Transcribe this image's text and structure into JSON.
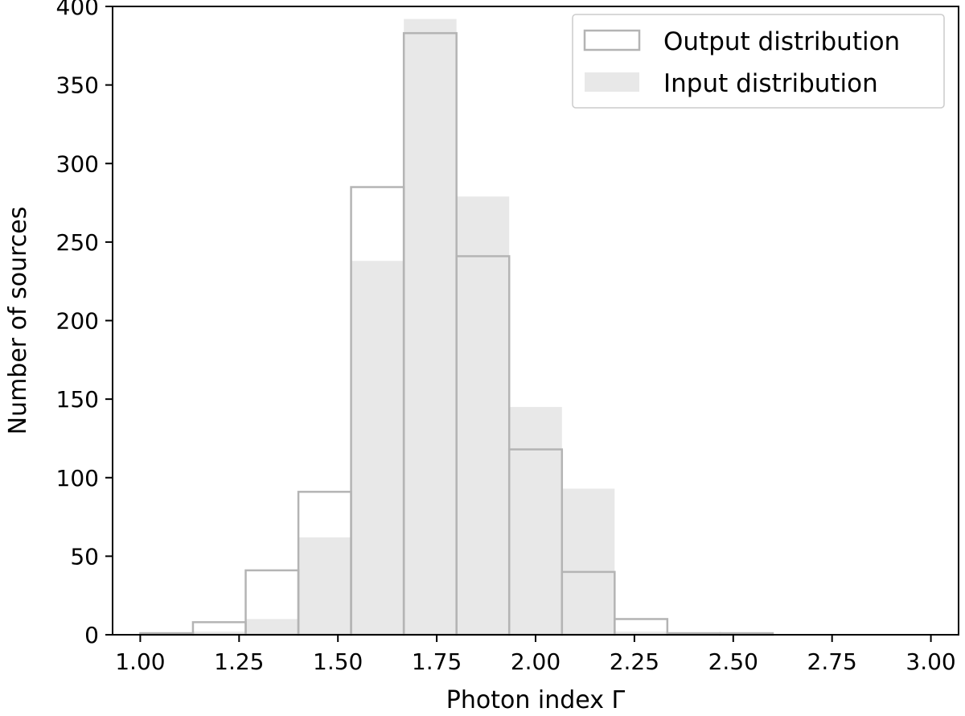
{
  "chart_data": {
    "type": "bar",
    "subtype": "histogram",
    "xlabel": "Photon index Γ",
    "ylabel": "Number of sources",
    "xlim": [
      0.93,
      3.07
    ],
    "ylim": [
      0,
      400
    ],
    "xticks": [
      1.0,
      1.25,
      1.5,
      1.75,
      2.0,
      2.25,
      2.5,
      2.75,
      3.0
    ],
    "xtick_labels": [
      "1.00",
      "1.25",
      "1.50",
      "1.75",
      "2.00",
      "2.25",
      "2.50",
      "2.75",
      "3.00"
    ],
    "yticks": [
      0,
      50,
      100,
      150,
      200,
      250,
      300,
      350,
      400
    ],
    "ytick_labels": [
      "0",
      "50",
      "100",
      "150",
      "200",
      "250",
      "300",
      "350",
      "400"
    ],
    "bin_edges": [
      1.0,
      1.1333,
      1.2667,
      1.4,
      1.5333,
      1.6667,
      1.8,
      1.9333,
      2.0667,
      2.2,
      2.3333,
      2.4667,
      2.6,
      2.7333,
      2.8667,
      3.0
    ],
    "grid": false,
    "legend_position": "top-right",
    "series": [
      {
        "name": "Output distribution",
        "style": "step-outline",
        "color": "#b4b4b4",
        "values": [
          1,
          8,
          41,
          91,
          285,
          383,
          241,
          118,
          40,
          10,
          1,
          1,
          0,
          0,
          0
        ]
      },
      {
        "name": "Input distribution",
        "style": "filled",
        "color": "#e8e8e8",
        "values": [
          0,
          2,
          10,
          62,
          238,
          392,
          279,
          145,
          93,
          2,
          1,
          1,
          0,
          0,
          0
        ]
      }
    ]
  }
}
